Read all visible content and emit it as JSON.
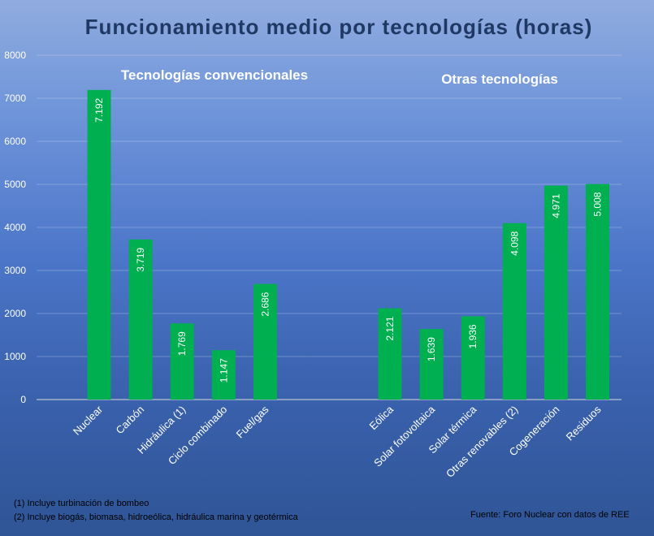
{
  "chart_data": {
    "type": "bar",
    "title": "Funcionamiento medio por tecnologías (horas)",
    "ylim": [
      0,
      8000
    ],
    "yticks": [
      0,
      1000,
      2000,
      3000,
      4000,
      5000,
      6000,
      7000,
      8000
    ],
    "grid": true,
    "bar_color": "#00b050",
    "groups": [
      {
        "label": "Tecnologías convencionales",
        "categories": [
          "Nuclear",
          "Carbón",
          "Hidráulica (1)",
          "Ciclo combinado",
          "Fuel/gas"
        ],
        "values": [
          7192,
          3719,
          1769,
          1147,
          2686
        ],
        "value_labels": [
          "7.192",
          "3.719",
          "1.769",
          "1.147",
          "2.686"
        ]
      },
      {
        "label": "Otras tecnologías",
        "categories": [
          "Eólica",
          "Solar fotovoltaica",
          "Solar térmica",
          "Otras renovables (2)",
          "Cogeneración",
          "Residuos"
        ],
        "values": [
          2121,
          1639,
          1936,
          4098,
          4971,
          5008
        ],
        "value_labels": [
          "2.121",
          "1.639",
          "1.936",
          "4.098",
          "4.971",
          "5.008"
        ]
      }
    ],
    "footnotes": [
      "(1) Incluye turbinación de bombeo",
      "(2) Incluye biogás, biomasa, hidroeólica, hidráulica marina y geotérmica"
    ],
    "source": "Fuente:  Foro Nuclear con datos de REE"
  }
}
